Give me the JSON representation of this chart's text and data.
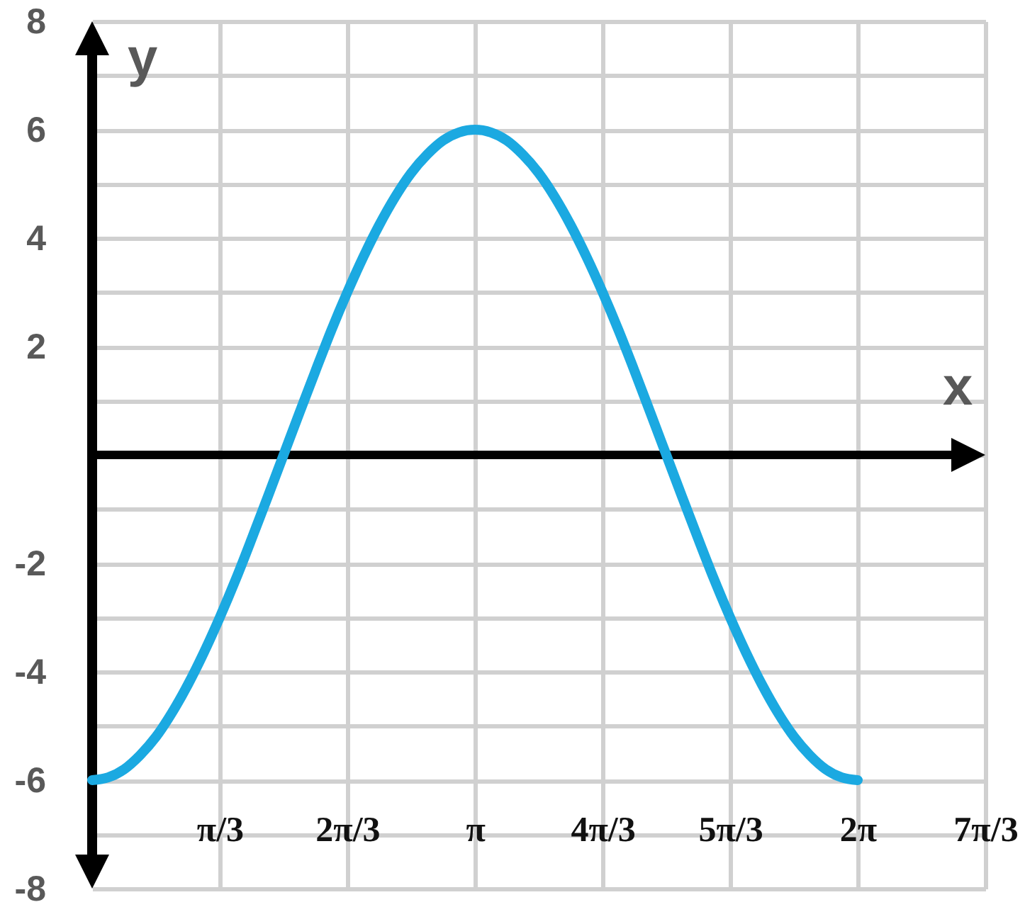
{
  "chart_data": {
    "type": "line",
    "xlabel": "x",
    "ylabel": "y",
    "x": [
      0,
      0.131,
      0.262,
      0.393,
      0.524,
      0.654,
      0.785,
      0.916,
      1.047,
      1.178,
      1.309,
      1.44,
      1.571,
      1.702,
      1.833,
      1.963,
      2.094,
      2.225,
      2.356,
      2.487,
      2.618,
      2.749,
      2.88,
      3.011,
      3.142,
      3.272,
      3.403,
      3.534,
      3.665,
      3.796,
      3.927,
      4.058,
      4.189,
      4.32,
      4.451,
      4.581,
      4.712,
      4.843,
      4.974,
      5.105,
      5.236,
      5.367,
      5.498,
      5.629,
      5.76,
      5.89,
      6.021,
      6.152,
      6.283
    ],
    "series": [
      {
        "color": "#1ba9e1",
        "values": [
          -6.0,
          -5.95,
          -5.8,
          -5.54,
          -5.2,
          -4.76,
          -4.24,
          -3.65,
          -3.0,
          -2.3,
          -1.55,
          -0.78,
          0.0,
          0.78,
          1.55,
          2.3,
          3.0,
          3.65,
          4.24,
          4.76,
          5.2,
          5.54,
          5.8,
          5.95,
          6.0,
          5.95,
          5.8,
          5.54,
          5.2,
          4.76,
          4.24,
          3.65,
          3.0,
          2.3,
          1.55,
          0.78,
          0.0,
          -0.78,
          -1.55,
          -2.3,
          -3.0,
          -3.65,
          -4.24,
          -4.76,
          -5.2,
          -5.54,
          -5.8,
          -5.95,
          -6.0
        ]
      }
    ],
    "xlim": [
      0,
      7.33
    ],
    "ylim": [
      -8,
      8
    ],
    "xticks": [
      {
        "value": 1.047,
        "label": "π/3"
      },
      {
        "value": 2.094,
        "label": "2π/3"
      },
      {
        "value": 3.142,
        "label": "π"
      },
      {
        "value": 4.189,
        "label": "4π/3"
      },
      {
        "value": 5.236,
        "label": "5π/3"
      },
      {
        "value": 6.283,
        "label": "2π"
      },
      {
        "value": 7.33,
        "label": "7π/3"
      }
    ],
    "yticks": [
      -8,
      {
        "value": -7,
        "label": null
      },
      -6,
      {
        "value": -5,
        "label": null
      },
      -4,
      {
        "value": -3,
        "label": null
      },
      -2,
      {
        "value": -1,
        "label": null
      },
      {
        "value": 0,
        "label": null
      },
      {
        "value": 1,
        "label": null
      },
      2,
      {
        "value": 3,
        "label": null
      },
      4,
      {
        "value": 5,
        "label": null
      },
      6,
      {
        "value": 7,
        "label": null
      },
      8
    ],
    "grid": true
  }
}
